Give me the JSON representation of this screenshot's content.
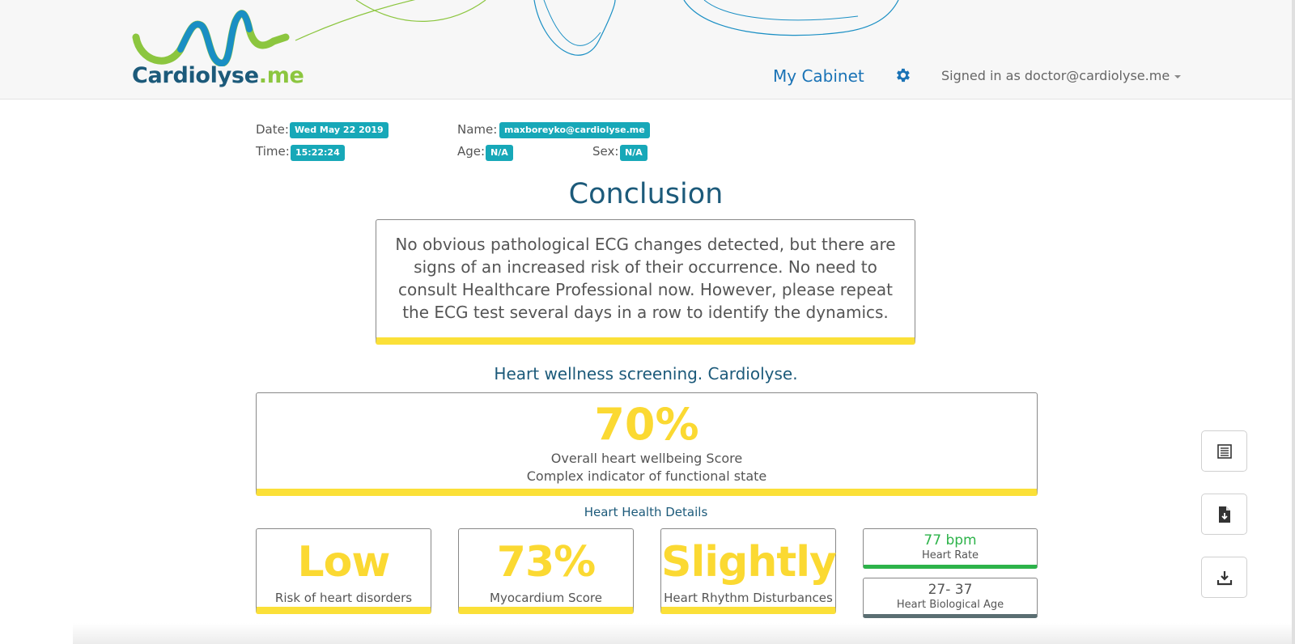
{
  "header": {
    "logo_brand": "Cardiolyse",
    "logo_tld": ".me",
    "nav_cabinet": "My Cabinet",
    "settings_icon": "gear-icon",
    "signed_in": "Signed in as doctor@cardiolyse.me",
    "dropdown_icon": "caret-down-icon"
  },
  "patient": {
    "date_label": "Date:",
    "date_value": "Wed May 22 2019",
    "time_label": "Time:",
    "time_value": "15:22:24",
    "name_label": "Name:",
    "name_value": "maxboreyko@cardiolyse.me",
    "age_label": "Age:",
    "age_value": "N/A",
    "sex_label": "Sex:",
    "sex_value": "N/A"
  },
  "conclusion": {
    "title": "Conclusion",
    "text": "No obvious pathological ECG changes detected, but there are signs of an increased risk of their occurrence. No need to consult Healthcare Professional now. However, please repeat the ECG test several days in a row to identify the dynamics."
  },
  "screening": {
    "title": "Heart wellness screening. Cardiolyse.",
    "score": "70%",
    "label1": "Overall heart wellbeing Score",
    "label2": "Complex indicator of functional state"
  },
  "details": {
    "title": "Heart Health Details",
    "metrics": [
      {
        "value": "Low",
        "label": "Risk of heart disorders"
      },
      {
        "value": "73%",
        "label": "Myocardium Score"
      },
      {
        "value": "Slightly",
        "label": "Heart Rhythm Disturbances"
      }
    ],
    "heart_rate": {
      "value": "77 bpm",
      "label": "Heart Rate"
    },
    "bio_age": {
      "value": "27- 37",
      "label": "Heart Biological Age"
    }
  },
  "side_buttons": {
    "list_icon": "list-icon",
    "file_download_icon": "file-download-icon",
    "download_icon": "download-icon"
  },
  "colors": {
    "accent_teal": "#17a8b8",
    "title_blue": "#1c5a7a",
    "link_blue": "#1a73b6",
    "score_yellow": "#fbd932",
    "bar_yellow": "#fbe038",
    "rate_green": "#2db34a",
    "bio_gray": "#5a6e72"
  }
}
